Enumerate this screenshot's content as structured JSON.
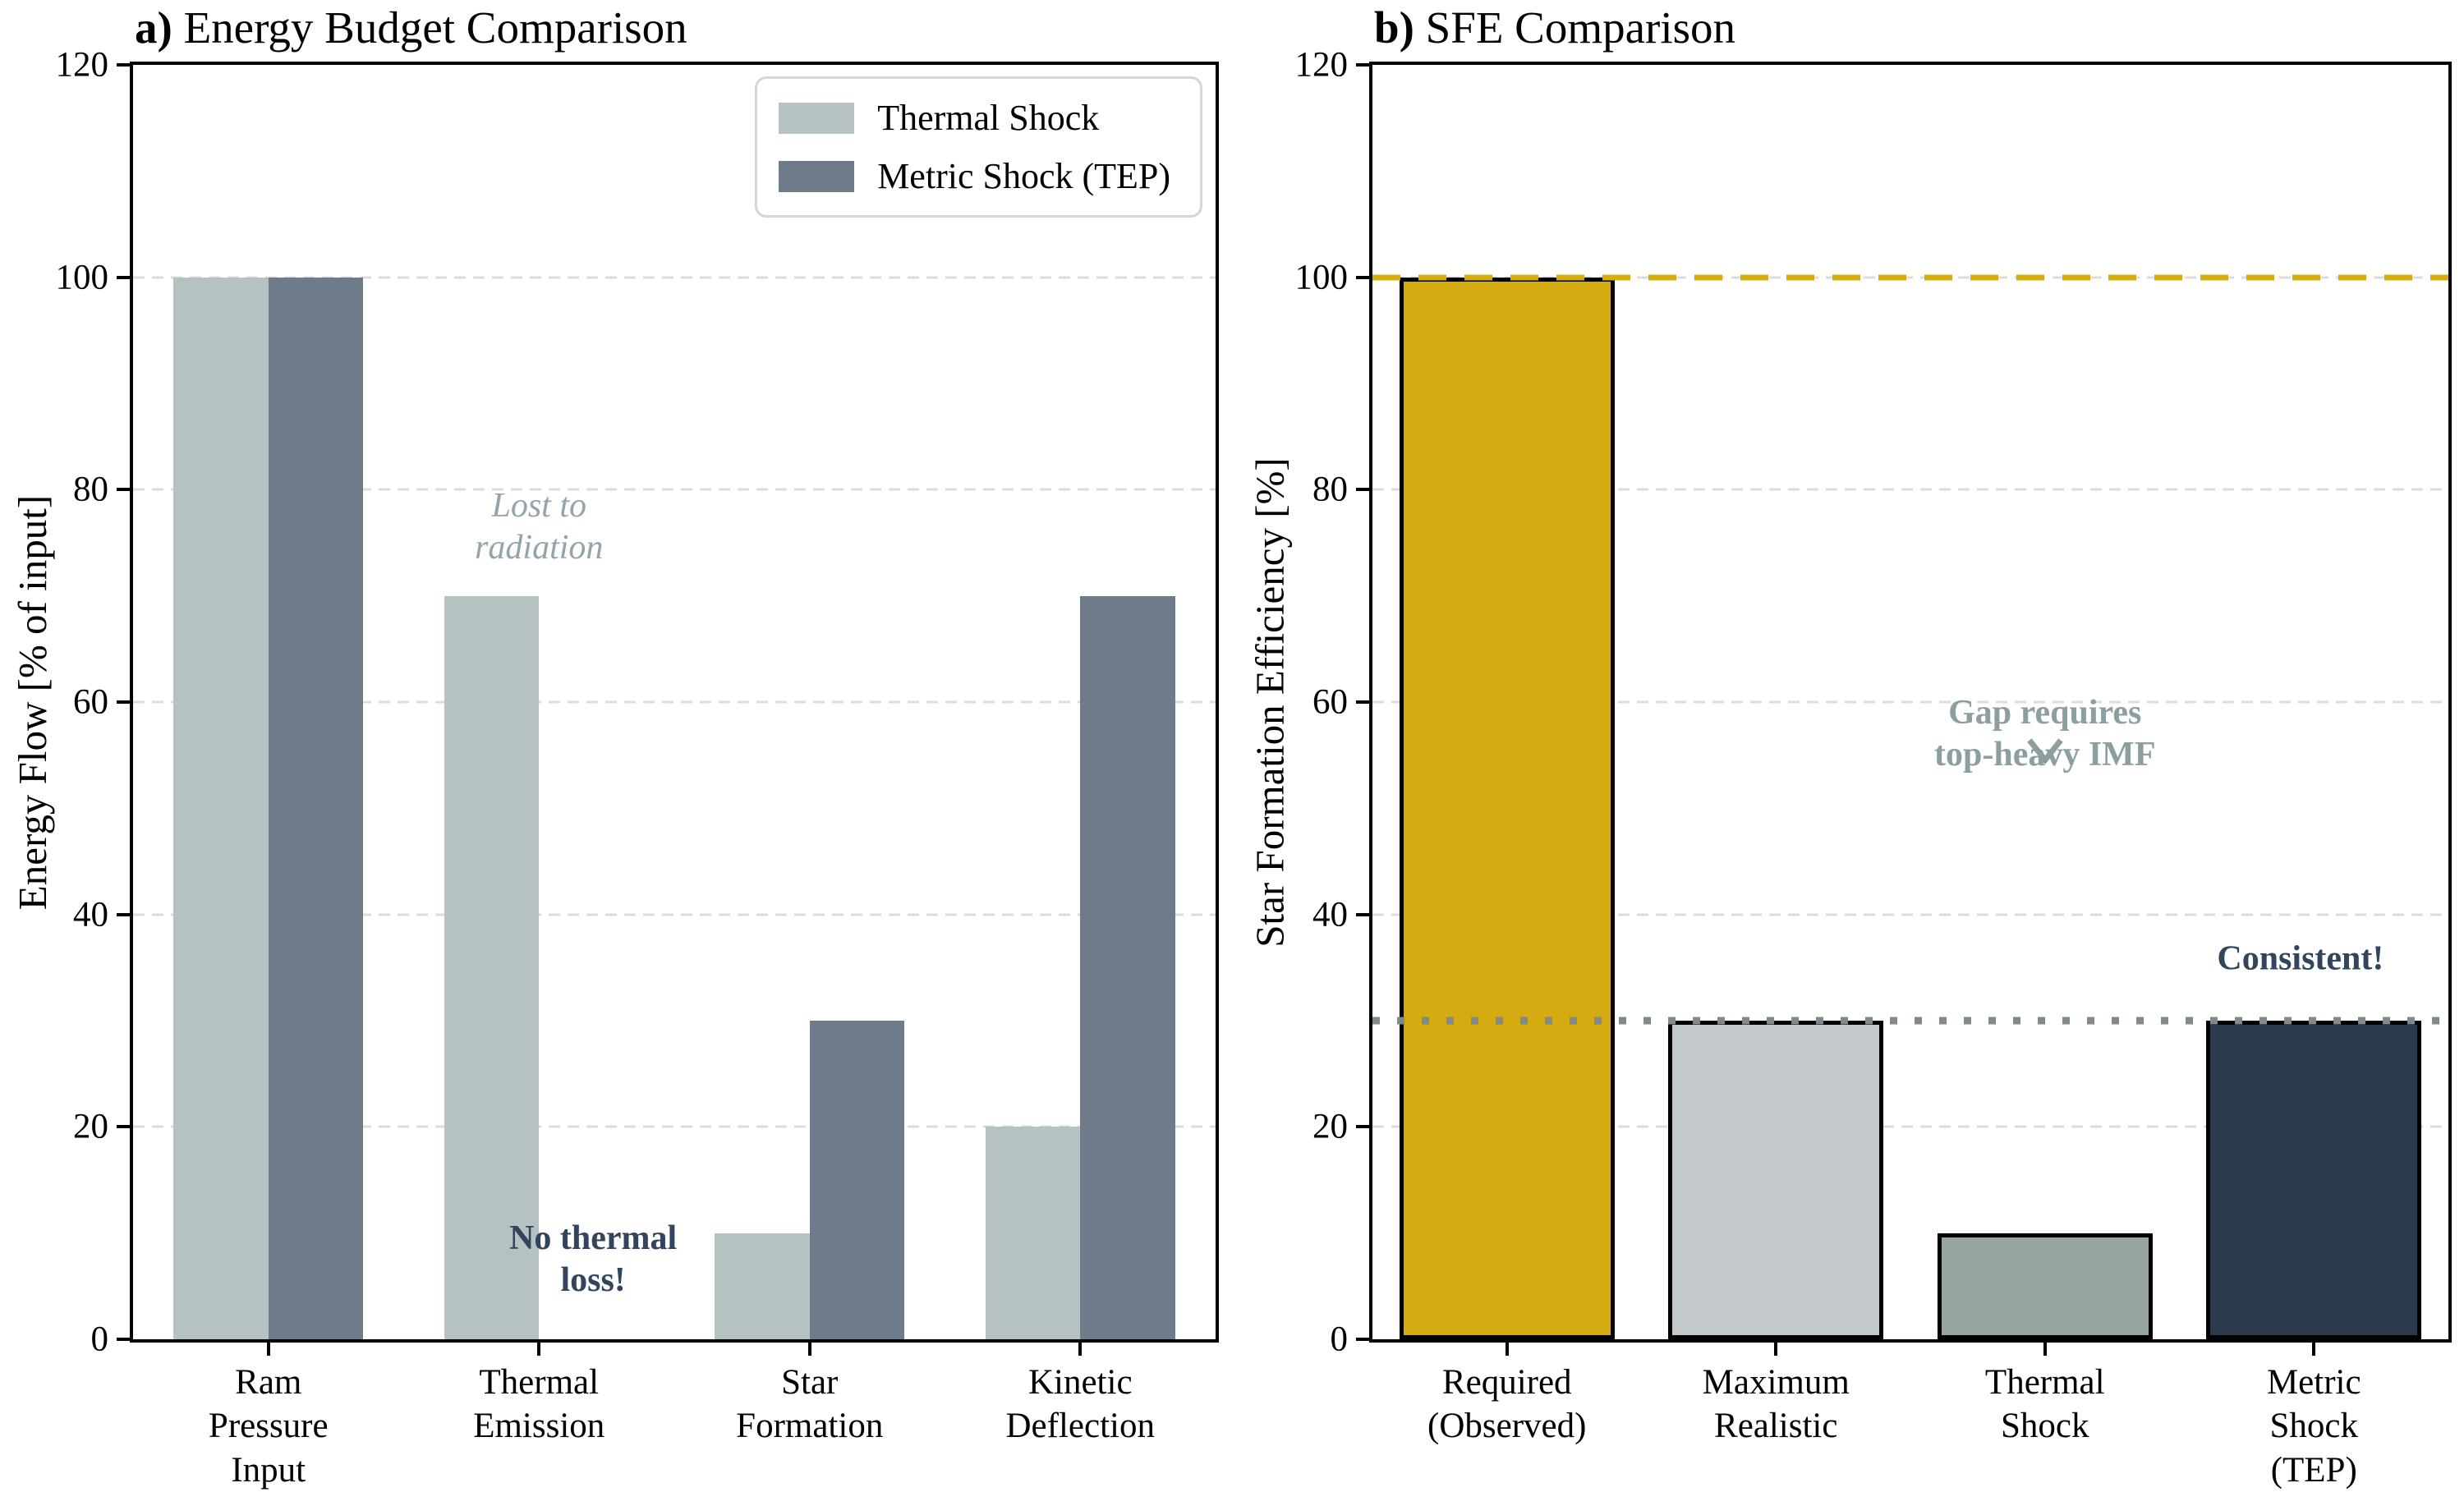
{
  "chart_data": [
    {
      "panel": "a",
      "type": "bar",
      "title_bold": "a)",
      "title_text": " Energy Budget Comparison",
      "ylabel": "Energy Flow [% of input]",
      "ylim": [
        0,
        120
      ],
      "yticks": [
        0,
        20,
        40,
        60,
        80,
        100,
        120
      ],
      "grid": "dashed-horizontal",
      "categories": [
        "Ram\nPressure\nInput",
        "Thermal\nEmission",
        "Star\nFormation",
        "Kinetic\nDeflection"
      ],
      "bar_width": 0.35,
      "series": [
        {
          "name": "Thermal Shock",
          "color": "#b6c2c1",
          "values": [
            100,
            70,
            10,
            20
          ]
        },
        {
          "name": "Metric Shock (TEP)",
          "color": "#6d7b8b",
          "values": [
            100,
            0,
            30,
            70
          ]
        }
      ],
      "legend": {
        "position": "upper right"
      },
      "annotations": [
        {
          "text": "Lost to\nradiation",
          "x": 1.0,
          "y": 76.5,
          "style": "italic",
          "color": "#93a5aa"
        },
        {
          "text": "No thermal\nloss!",
          "x": 1.2,
          "y": 7.5,
          "style": "bold",
          "color": "#33455c"
        }
      ]
    },
    {
      "panel": "b",
      "type": "bar",
      "title_bold": "b)",
      "title_text": " SFE Comparison",
      "ylabel": "Star Formation Efficiency [%]",
      "ylim": [
        0,
        120
      ],
      "yticks": [
        0,
        20,
        40,
        60,
        80,
        100,
        120
      ],
      "grid": "dashed-horizontal",
      "categories": [
        "Required\n(Observed)",
        "Maximum\nRealistic",
        "Thermal\nShock",
        "Metric\nShock\n(TEP)"
      ],
      "bar_width": 0.8,
      "values": [
        100,
        30,
        10,
        30
      ],
      "bar_colors": [
        "#d4ab10",
        "#c3c8cc",
        "#96a5a0",
        "#2b3a4d"
      ],
      "bar_edgecolor": "#000000",
      "reference_lines": [
        {
          "y": 100,
          "style": "dashed",
          "color": "#d4ac0d"
        },
        {
          "y": 30,
          "style": "dotted",
          "color": "#7f8a8c"
        }
      ],
      "annotations": [
        {
          "text": "Gap requires\ntop-heavy IMF",
          "x": 2.0,
          "y": 57,
          "style": "bold",
          "color": "#8c9ea0",
          "arrow": "down"
        },
        {
          "text": "Consistent!",
          "x": 2.95,
          "y": 35.8,
          "style": "bold",
          "color": "#33455c"
        }
      ]
    }
  ]
}
